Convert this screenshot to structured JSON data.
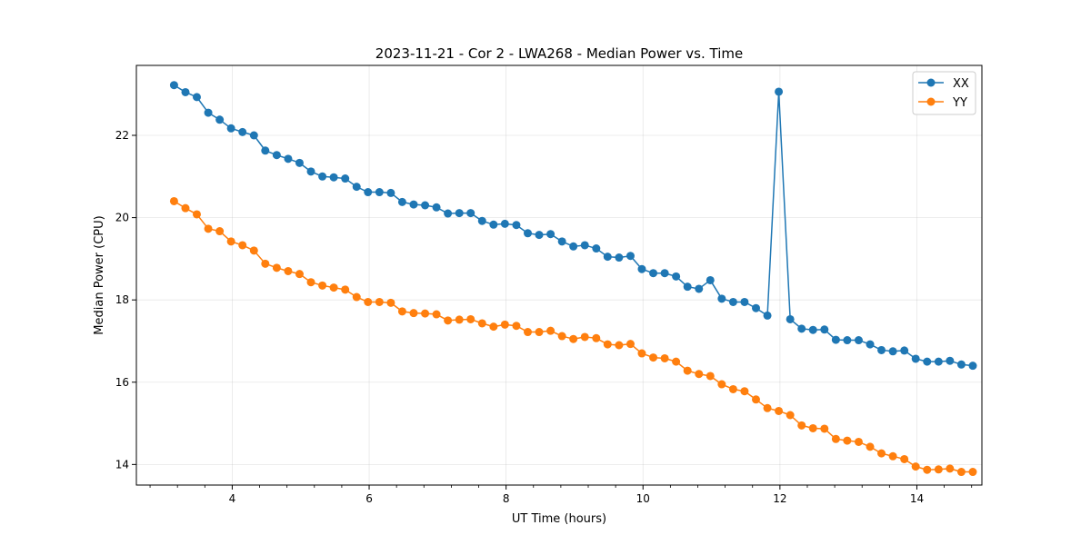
{
  "chart_data": {
    "type": "line",
    "title": "2023-11-21 - Cor 2 - LWA268 - Median Power vs. Time",
    "xlabel": "UT Time (hours)",
    "ylabel": "Median Power (CPU)",
    "xlim": [
      2.6,
      14.95
    ],
    "ylim": [
      13.5,
      23.7
    ],
    "xticks": [
      4,
      6,
      8,
      10,
      12,
      14
    ],
    "xtick_labels": [
      "4",
      "6",
      "8",
      "10",
      "12",
      "14"
    ],
    "xminor_step": 0.4,
    "yticks": [
      14,
      16,
      18,
      20,
      22
    ],
    "ytick_labels": [
      "14",
      "16",
      "18",
      "20",
      "22"
    ],
    "grid": true,
    "legend_position": "top-right",
    "x": [
      3.15,
      3.317,
      3.483,
      3.65,
      3.817,
      3.983,
      4.15,
      4.317,
      4.483,
      4.65,
      4.817,
      4.983,
      5.15,
      5.317,
      5.483,
      5.65,
      5.817,
      5.983,
      6.15,
      6.317,
      6.483,
      6.65,
      6.817,
      6.983,
      7.15,
      7.317,
      7.483,
      7.65,
      7.817,
      7.983,
      8.15,
      8.317,
      8.483,
      8.65,
      8.817,
      8.983,
      9.15,
      9.317,
      9.483,
      9.65,
      9.817,
      9.983,
      10.15,
      10.317,
      10.483,
      10.65,
      10.817,
      10.983,
      11.15,
      11.317,
      11.483,
      11.65,
      11.817,
      11.983,
      12.15,
      12.317,
      12.483,
      12.65,
      12.817,
      12.983,
      13.15,
      13.317,
      13.483,
      13.65,
      13.817,
      13.983,
      14.15,
      14.317,
      14.483,
      14.65,
      14.817
    ],
    "series": [
      {
        "name": "XX",
        "color": "#1f77b4",
        "values": [
          23.22,
          23.05,
          22.93,
          22.55,
          22.38,
          22.17,
          22.08,
          22.0,
          21.63,
          21.52,
          21.43,
          21.33,
          21.12,
          21.0,
          20.98,
          20.95,
          20.75,
          20.62,
          20.62,
          20.6,
          20.38,
          20.32,
          20.3,
          20.25,
          20.1,
          20.11,
          20.11,
          19.92,
          19.83,
          19.85,
          19.82,
          19.62,
          19.58,
          19.6,
          19.42,
          19.3,
          19.33,
          19.25,
          19.05,
          19.03,
          19.07,
          18.75,
          18.65,
          18.65,
          18.57,
          18.32,
          18.27,
          18.48,
          18.03,
          17.95,
          17.95,
          17.8,
          17.62,
          23.06,
          17.53,
          17.3,
          17.27,
          17.28,
          17.03,
          17.02,
          17.02,
          16.92,
          16.78,
          16.75,
          16.77,
          16.57,
          16.5,
          16.5,
          16.52,
          16.43,
          16.4
        ]
      },
      {
        "name": "YY",
        "color": "#ff7f0e",
        "values": [
          20.4,
          20.23,
          20.08,
          19.73,
          19.67,
          19.42,
          19.33,
          19.2,
          18.88,
          18.78,
          18.7,
          18.63,
          18.43,
          18.35,
          18.3,
          18.25,
          18.07,
          17.95,
          17.95,
          17.93,
          17.72,
          17.68,
          17.67,
          17.65,
          17.5,
          17.52,
          17.53,
          17.43,
          17.35,
          17.4,
          17.37,
          17.22,
          17.22,
          17.25,
          17.12,
          17.05,
          17.1,
          17.07,
          16.92,
          16.9,
          16.93,
          16.7,
          16.6,
          16.58,
          16.5,
          16.28,
          16.2,
          16.15,
          15.95,
          15.83,
          15.78,
          15.58,
          15.37,
          15.3,
          15.2,
          14.95,
          14.88,
          14.87,
          14.62,
          14.58,
          14.55,
          14.43,
          14.27,
          14.2,
          14.13,
          13.95,
          13.87,
          13.88,
          13.9,
          13.82,
          13.82
        ]
      }
    ]
  }
}
